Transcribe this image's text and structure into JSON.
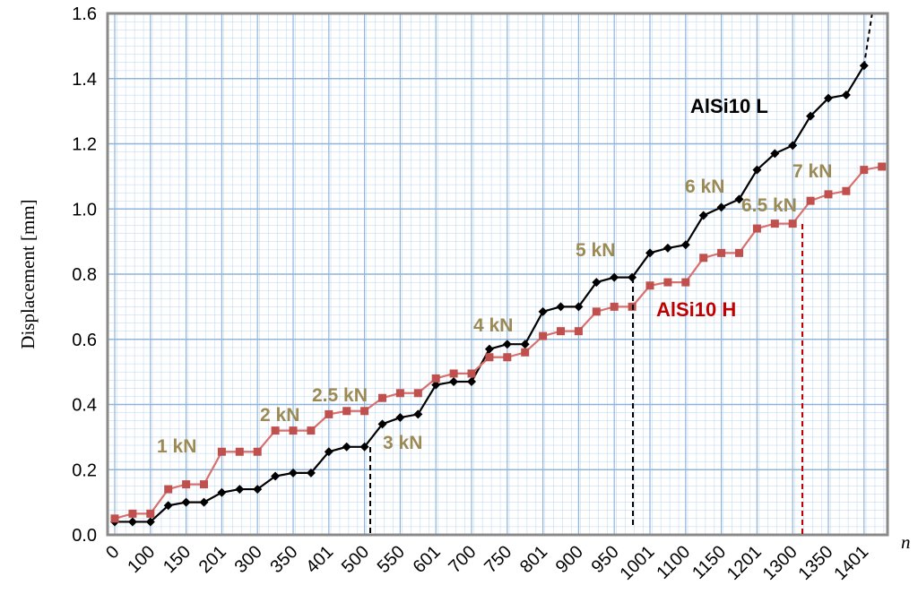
{
  "chart_data": {
    "type": "line",
    "y_label": "Displacement [mm]",
    "x_label": "n",
    "categories": [
      "0",
      null,
      "100",
      null,
      "150",
      null,
      "201",
      null,
      "300",
      null,
      "350",
      null,
      "401",
      null,
      "500",
      null,
      "550",
      null,
      "601",
      null,
      "700",
      null,
      "750",
      null,
      "801",
      null,
      "900",
      null,
      "950",
      null,
      "1001",
      null,
      "1100",
      null,
      "1150",
      null,
      "1201",
      null,
      "1300",
      null,
      "1350",
      null,
      "1401",
      null
    ],
    "series": [
      {
        "name": "AlSi10 L",
        "color": "#000000",
        "marker": "diamond",
        "values": [
          0.04,
          0.04,
          0.04,
          0.09,
          0.1,
          0.1,
          0.13,
          0.14,
          0.14,
          0.18,
          0.19,
          0.19,
          0.255,
          0.27,
          0.27,
          0.34,
          0.36,
          0.37,
          0.46,
          0.47,
          0.47,
          0.57,
          0.585,
          0.585,
          0.685,
          0.7,
          0.7,
          0.775,
          0.79,
          0.79,
          0.865,
          0.88,
          0.89,
          0.98,
          1.005,
          1.03,
          1.12,
          1.17,
          1.195,
          1.285,
          1.34,
          1.35,
          1.44,
          null
        ]
      },
      {
        "name": "AlSi10 H",
        "color": "#c0504d",
        "marker": "square",
        "values": [
          0.05,
          0.065,
          0.065,
          0.14,
          0.155,
          0.155,
          0.255,
          0.255,
          0.255,
          0.32,
          0.32,
          0.32,
          0.37,
          0.38,
          0.38,
          0.42,
          0.435,
          0.435,
          0.48,
          0.495,
          0.495,
          0.545,
          0.545,
          0.56,
          0.61,
          0.625,
          0.625,
          0.685,
          0.7,
          0.7,
          0.765,
          0.775,
          0.775,
          0.85,
          0.865,
          0.865,
          0.94,
          0.955,
          0.955,
          1.025,
          1.045,
          1.055,
          1.12,
          1.13
        ]
      }
    ],
    "annotations": [
      "1 kN",
      "2 kN",
      "2.5 kN",
      "3 kN",
      "4 kN",
      "5 kN",
      "6 kN",
      "6.5 kN",
      "7 kN"
    ],
    "ylim": [
      0,
      1.6
    ],
    "yticks": [
      {
        "value": 0,
        "label": "0.0"
      },
      0.2,
      0.4,
      0.6,
      0.8,
      {
        "value": 1,
        "label": "1.0"
      },
      1.2,
      1.4,
      1.6
    ],
    "grid": true
  }
}
